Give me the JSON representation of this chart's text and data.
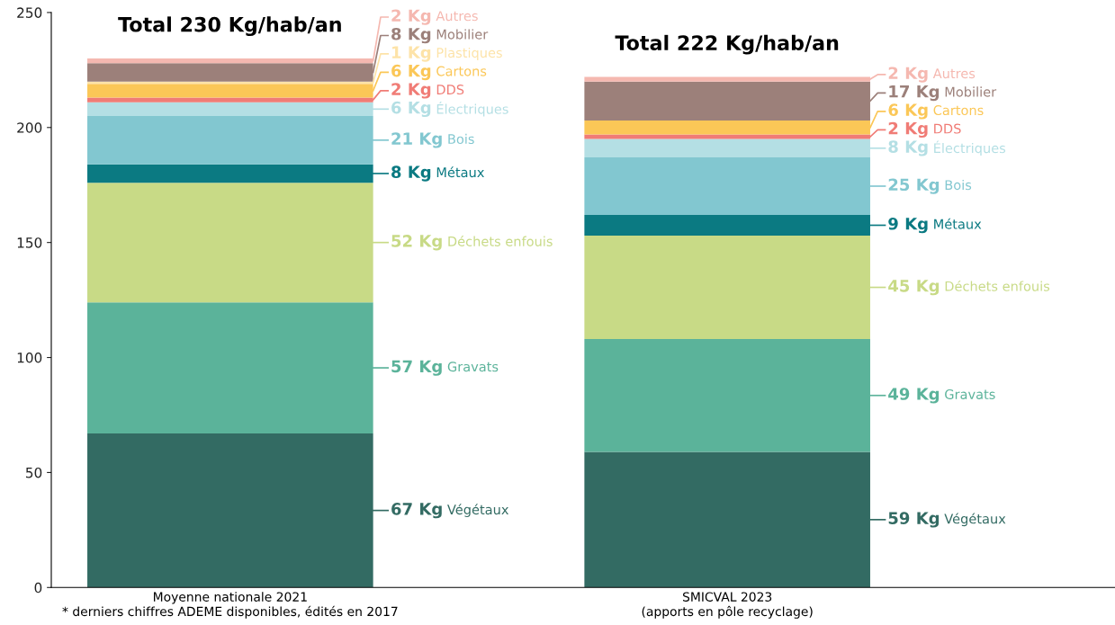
{
  "chart_data": {
    "type": "bar",
    "stacked": true,
    "categories": [
      "Moyenne nationale 2021\n* derniers chiffres ADEME disponibles, édités en 2017",
      "SMICVAL 2023\n(apports en pôle recyclage)"
    ],
    "series": [
      {
        "name": "Végétaux",
        "color": "#336b63",
        "values": [
          67,
          59
        ],
        "value_labels": [
          "67 Kg",
          "59 Kg"
        ]
      },
      {
        "name": "Gravats",
        "color": "#5bb39a",
        "values": [
          57,
          49
        ],
        "value_labels": [
          "57 Kg",
          "49 Kg"
        ]
      },
      {
        "name": "Déchets enfouis",
        "color": "#c8da86",
        "values": [
          52,
          45
        ],
        "value_labels": [
          "52 Kg",
          "45 Kg"
        ]
      },
      {
        "name": "Métaux",
        "color": "#0b7a82",
        "values": [
          8,
          9
        ],
        "value_labels": [
          "8 Kg",
          "9 Kg"
        ]
      },
      {
        "name": "Bois",
        "color": "#82c7d0",
        "values": [
          21,
          25
        ],
        "value_labels": [
          "21 Kg",
          "25 Kg"
        ]
      },
      {
        "name": "Électriques",
        "color": "#b4dfe4",
        "values": [
          6,
          8
        ],
        "value_labels": [
          "6 Kg",
          "8 Kg"
        ]
      },
      {
        "name": "DDS",
        "color": "#f07c76",
        "values": [
          2,
          2
        ],
        "value_labels": [
          "2 Kg",
          "2 Kg"
        ]
      },
      {
        "name": "Cartons",
        "color": "#fbc757",
        "values": [
          6,
          6
        ],
        "value_labels": [
          "6 Kg",
          "6 Kg"
        ]
      },
      {
        "name": "Plastiques",
        "color": "#fde3a8",
        "values": [
          1,
          null
        ],
        "value_labels": [
          "1 Kg",
          null
        ]
      },
      {
        "name": "Mobilier",
        "color": "#9c807a",
        "values": [
          8,
          17
        ],
        "value_labels": [
          "8 Kg",
          "17 Kg"
        ]
      },
      {
        "name": "Autres",
        "color": "#f5b8b0",
        "values": [
          2,
          2
        ],
        "value_labels": [
          "2 Kg",
          "2 Kg"
        ]
      }
    ],
    "ylim": [
      0,
      250
    ],
    "yticks": [
      0,
      50,
      100,
      150,
      200,
      250
    ],
    "grid": false,
    "legend": false,
    "annotations": [
      {
        "text": "Total 230 Kg/hab/an",
        "x": "Moyenne nationale 2021\n* derniers chiffres ADEME disponibles, édités en 2017",
        "y": 230
      },
      {
        "text": "Total 222 Kg/hab/an",
        "x": "SMICVAL 2023\n(apports en pôle recyclage)",
        "y": 222
      }
    ]
  }
}
